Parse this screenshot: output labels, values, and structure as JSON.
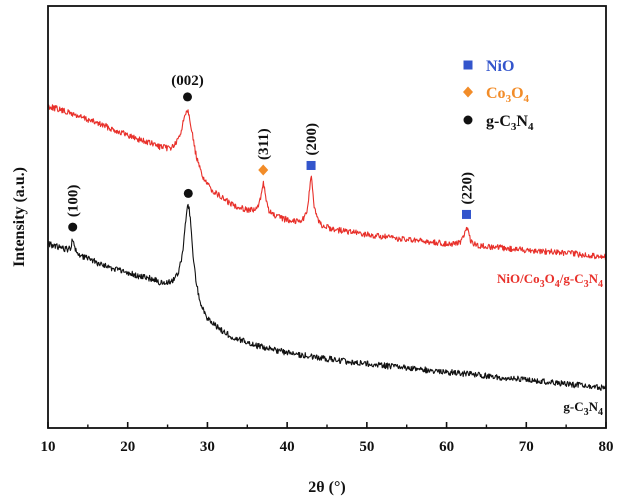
{
  "chart_data": {
    "type": "line",
    "xlabel": "2θ (°)",
    "ylabel": "Intensity (a.u.)",
    "xlim": [
      10,
      80
    ],
    "xticks": [
      "10",
      "20",
      "30",
      "40",
      "50",
      "60",
      "70",
      "80"
    ],
    "grid": false,
    "legend_position": "top-right",
    "legend": [
      {
        "label_main": "NiO",
        "label_sub": "",
        "color": "#3355cc",
        "marker": "square"
      },
      {
        "label_main": "Co",
        "label_sub": "3",
        "label_main2": "O",
        "label_sub2": "4",
        "color": "#f28c28",
        "marker": "diamond"
      },
      {
        "label_main": "g-C",
        "label_sub": "3",
        "label_main2": "N",
        "label_sub2": "4",
        "color": "#111111",
        "marker": "circle"
      }
    ],
    "series": [
      {
        "name": "NiO/Co3O4/g-C3N4",
        "color": "#e8302a",
        "label_parts": [
          "NiO/Co",
          "3",
          "O",
          "4",
          "/g-C",
          "3",
          "N",
          "4"
        ],
        "baseline": [
          [
            10,
            106
          ],
          [
            13,
            114
          ],
          [
            17,
            126
          ],
          [
            20,
            136
          ],
          [
            23,
            146
          ],
          [
            25,
            155
          ],
          [
            26,
            160
          ],
          [
            30,
            192
          ],
          [
            33,
            206
          ],
          [
            36,
            214
          ],
          [
            40,
            221
          ],
          [
            45,
            229
          ],
          [
            50,
            235
          ],
          [
            55,
            240
          ],
          [
            60,
            244
          ],
          [
            65,
            247
          ],
          [
            70,
            250
          ],
          [
            75,
            253
          ],
          [
            80,
            257
          ]
        ],
        "peaks": [
          {
            "x": 27.5,
            "height": 62,
            "width": 0.9
          },
          {
            "x": 37.0,
            "height": 32,
            "width": 0.35
          },
          {
            "x": 43.0,
            "height": 47,
            "width": 0.35
          },
          {
            "x": 62.5,
            "height": 18,
            "width": 0.35
          }
        ]
      },
      {
        "name": "g-C3N4",
        "color": "#111111",
        "label_parts": [
          "g-C",
          "3",
          "N",
          "4"
        ],
        "baseline": [
          [
            10,
            244
          ],
          [
            13,
            252
          ],
          [
            17,
            266
          ],
          [
            20,
            274
          ],
          [
            23,
            281
          ],
          [
            25,
            290
          ],
          [
            26,
            292
          ],
          [
            28,
            310
          ],
          [
            30,
            326
          ],
          [
            33,
            338
          ],
          [
            36,
            346
          ],
          [
            40,
            353
          ],
          [
            45,
            359
          ],
          [
            50,
            364
          ],
          [
            55,
            368
          ],
          [
            60,
            372
          ],
          [
            65,
            376
          ],
          [
            70,
            380
          ],
          [
            75,
            384
          ],
          [
            80,
            388
          ]
        ],
        "peaks": [
          {
            "x": 27.6,
            "height": 100,
            "width": 0.7
          },
          {
            "x": 13.1,
            "height": 12,
            "width": 0.2
          }
        ]
      }
    ],
    "annotations": [
      {
        "text": "(002)",
        "x": 27.5,
        "series": 0,
        "marker": "circle",
        "color": "#111111"
      },
      {
        "text": "(311)",
        "x": 37.0,
        "series": 0,
        "marker": "diamond",
        "color": "#f28c28"
      },
      {
        "text": "(200)",
        "x": 43.0,
        "series": 0,
        "marker": "square",
        "color": "#3355cc"
      },
      {
        "text": "(220)",
        "x": 62.5,
        "series": 0,
        "marker": "square",
        "color": "#3355cc"
      },
      {
        "text": "(100)",
        "x": 13.1,
        "series": 1,
        "marker": "circle",
        "color": "#111111"
      },
      {
        "text": "",
        "x": 27.6,
        "series": 1,
        "marker": "circle",
        "color": "#111111"
      }
    ]
  }
}
